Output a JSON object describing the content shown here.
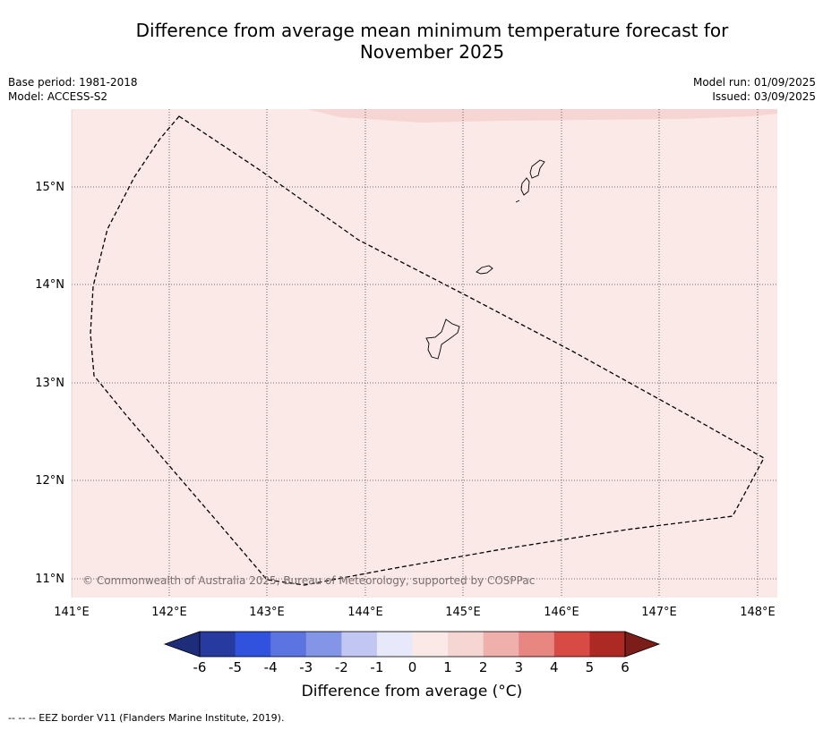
{
  "title": {
    "line1": "Difference from average mean minimum temperature forecast for",
    "line2": "November 2025"
  },
  "meta_left": {
    "base_period": "Base period: 1981-2018",
    "model": "Model: ACCESS-S2"
  },
  "meta_right": {
    "model_run": "Model run: 01/09/2025",
    "issued": "Issued: 03/09/2025"
  },
  "map": {
    "lat_labels": [
      "15°N",
      "14°N",
      "13°N",
      "12°N",
      "11°N"
    ],
    "lon_labels": [
      "141°E",
      "142°E",
      "143°E",
      "144°E",
      "145°E",
      "146°E",
      "147°E",
      "148°E"
    ],
    "background_fill": "#fbe9e7",
    "warmer_fill": "#f5d6d3",
    "copyright": "© Commonwealth of Australia 2025, Bureau of Meteorology, supported by COSPPac",
    "islands": [
      "Guam",
      "Rota",
      "Tinian",
      "Saipan"
    ]
  },
  "colorbar": {
    "tick_labels": [
      "-6",
      "-5",
      "-4",
      "-3",
      "-2",
      "-1",
      "0",
      "1",
      "2",
      "3",
      "4",
      "5",
      "6"
    ],
    "colors": [
      "#263a9f",
      "#3152dc",
      "#5b74e1",
      "#8395e7",
      "#c1c7f2",
      "#e7e9fb",
      "#fbe9e7",
      "#f5d6d3",
      "#efafab",
      "#e88781",
      "#d84a44",
      "#ad2a24"
    ],
    "under_color": "#1e2d7a",
    "over_color": "#7c1d1a",
    "label": "Difference from average (°C)"
  },
  "footnote": "-- -- -- EEZ border V11 (Flanders Marine Institute, 2019)."
}
